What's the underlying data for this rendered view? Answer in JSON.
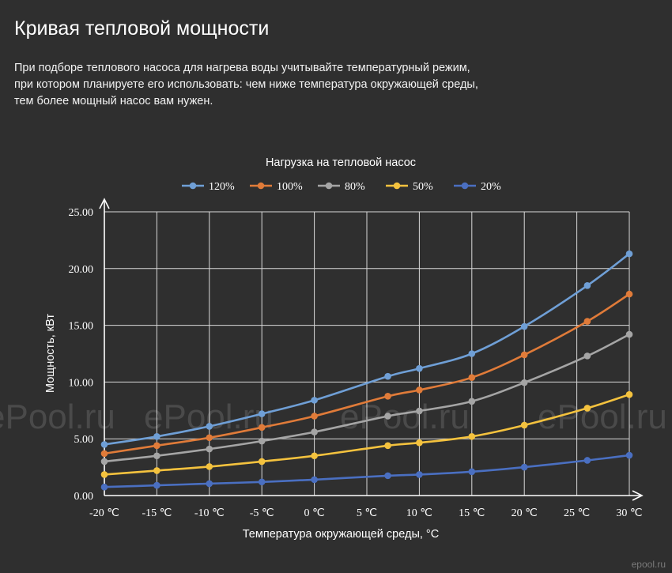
{
  "page": {
    "title": "Кривая тепловой мощности",
    "description_lines": [
      "При подборе теплового насоса для нагрева воды учитывайте температурный режим,",
      "при котором планируете его использовать: чем ниже температура окружающей среды,",
      "тем более мощный насос вам нужен."
    ],
    "watermark": "ePool.ru",
    "corner_watermark": "epool.ru"
  },
  "chart_data": {
    "type": "line",
    "title": "Нагрузка на тепловой насос",
    "xlabel": "Температура окружающей среды, °C",
    "ylabel": "Мощность, кВт",
    "x_ticks": [
      -20,
      -15,
      -10,
      -5,
      0,
      5,
      10,
      15,
      20,
      25,
      30
    ],
    "x_tick_labels": [
      "-20 ℃",
      "-15 ℃",
      "-10 ℃",
      "-5 ℃",
      "0 ℃",
      "5 ℃",
      "10 ℃",
      "15 ℃",
      "20 ℃",
      "25 ℃",
      "30 ℃"
    ],
    "xlim": [
      -20,
      30
    ],
    "ylim": [
      0,
      25
    ],
    "y_ticks": [
      0,
      5,
      10,
      15,
      20,
      25
    ],
    "y_tick_labels": [
      "0.00",
      "5.00",
      "10.00",
      "15.00",
      "20.00",
      "25.00"
    ],
    "grid": true,
    "legend_position": "top-center",
    "x": [
      -20,
      -15,
      -10,
      -5,
      0,
      7,
      10,
      15,
      20,
      26,
      30
    ],
    "series": [
      {
        "name": "120%",
        "color": "#6f9fd6",
        "values": [
          4.5,
          5.2,
          6.1,
          7.2,
          8.4,
          10.5,
          11.2,
          12.5,
          14.9,
          18.5,
          21.3
        ]
      },
      {
        "name": "100%",
        "color": "#e07b39",
        "values": [
          3.7,
          4.4,
          5.1,
          6.0,
          7.0,
          8.75,
          9.3,
          10.4,
          12.4,
          15.35,
          17.75
        ]
      },
      {
        "name": "80%",
        "color": "#a5a5a5",
        "values": [
          3.0,
          3.5,
          4.1,
          4.8,
          5.6,
          7.0,
          7.45,
          8.3,
          9.95,
          12.3,
          14.2
        ]
      },
      {
        "name": "50%",
        "color": "#f4c23e",
        "values": [
          1.85,
          2.2,
          2.55,
          3.0,
          3.5,
          4.4,
          4.65,
          5.2,
          6.2,
          7.7,
          8.9
        ]
      },
      {
        "name": "20%",
        "color": "#4a6fc1",
        "values": [
          0.75,
          0.9,
          1.05,
          1.2,
          1.4,
          1.75,
          1.85,
          2.1,
          2.5,
          3.1,
          3.55
        ]
      }
    ]
  }
}
